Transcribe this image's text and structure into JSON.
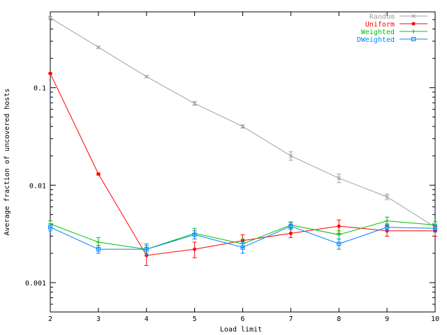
{
  "chart_data": {
    "type": "line",
    "title": "",
    "xlabel": "Load limit",
    "ylabel": "Average fraction of uncovered hosts",
    "xlim": [
      2,
      10
    ],
    "ylim": [
      0.0005,
      0.6
    ],
    "yscale": "log",
    "grid": false,
    "legend_position": "top-right",
    "x_ticks": [
      2,
      3,
      4,
      5,
      6,
      7,
      8,
      9,
      10
    ],
    "x_tick_labels": [
      "2",
      "3",
      "4",
      "5",
      "6",
      "7",
      "8",
      "9",
      "10"
    ],
    "y_ticks": [
      0.001,
      0.01,
      0.1
    ],
    "y_tick_labels": [
      "0.001",
      "0.01",
      "0.1"
    ],
    "x": [
      2,
      3,
      4,
      5,
      6,
      7,
      8,
      9,
      10
    ],
    "series": [
      {
        "name": "Random",
        "color": "#a0a0a0",
        "marker": "x",
        "values": [
          0.52,
          0.26,
          0.13,
          0.069,
          0.04,
          0.02,
          0.0118,
          0.0076,
          0.0037
        ],
        "errors": [
          0.01,
          0.006,
          0.003,
          0.003,
          0.0015,
          0.002,
          0.0012,
          0.0005,
          0.0003
        ]
      },
      {
        "name": "Uniform",
        "color": "#ff0000",
        "marker": "dot",
        "values": [
          0.14,
          0.013,
          0.0019,
          0.0022,
          0.0027,
          0.0032,
          0.0038,
          0.0034,
          0.0034
        ],
        "errors": [
          0.002,
          0.0003,
          0.0004,
          0.0004,
          0.0004,
          0.0003,
          0.0006,
          0.0004,
          0.0004
        ]
      },
      {
        "name": "Weighted",
        "color": "#00c000",
        "marker": "plus",
        "values": [
          0.004,
          0.0026,
          0.0022,
          0.0032,
          0.0025,
          0.0039,
          0.0031,
          0.0043,
          0.0039
        ],
        "errors": [
          0.0003,
          0.0003,
          0.0002,
          0.0004,
          0.0003,
          0.0003,
          0.0003,
          0.0004,
          0.0003
        ]
      },
      {
        "name": "DWeighted",
        "color": "#0080ff",
        "marker": "square",
        "values": [
          0.0037,
          0.0022,
          0.0022,
          0.0031,
          0.0023,
          0.0038,
          0.0025,
          0.0037,
          0.0036
        ],
        "errors": [
          0.0003,
          0.0002,
          0.0003,
          0.0003,
          0.0003,
          0.0003,
          0.0003,
          0.0003,
          0.0003
        ]
      }
    ]
  }
}
